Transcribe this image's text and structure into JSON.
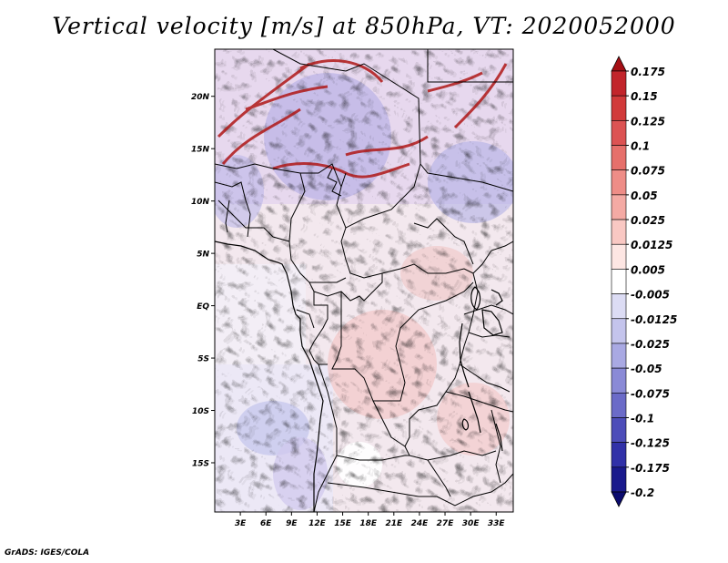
{
  "title": "Vertical velocity [m/s] at 850hPa, VT: 2020052000",
  "footer": "GrADS: IGES/COLA",
  "map": {
    "lat_labels": [
      "20N",
      "15N",
      "10N",
      "5N",
      "EQ",
      "5S",
      "10S",
      "15S"
    ],
    "lat_values": [
      20,
      15,
      10,
      5,
      0,
      -5,
      -10,
      -15
    ],
    "lon_labels": [
      "3E",
      "6E",
      "9E",
      "12E",
      "15E",
      "18E",
      "21E",
      "24E",
      "27E",
      "30E",
      "33E"
    ],
    "lon_values": [
      3,
      6,
      9,
      12,
      15,
      18,
      21,
      24,
      27,
      30,
      33
    ],
    "lat_range": [
      -19.7,
      24.5
    ],
    "lon_range": [
      0,
      35
    ]
  },
  "colorbar": {
    "labels": [
      "0.175",
      "0.15",
      "0.125",
      "0.1",
      "0.075",
      "0.05",
      "0.025",
      "0.0125",
      "0.005",
      "-0.005",
      "-0.0125",
      "-0.025",
      "-0.05",
      "-0.075",
      "-0.1",
      "-0.125",
      "-0.175",
      "-0.2"
    ],
    "colors": [
      "#a50f15",
      "#c2252b",
      "#d13a3a",
      "#dc5353",
      "#e6706b",
      "#ee8d87",
      "#f4aaa4",
      "#f9c8c3",
      "#fde6e3",
      "#ffffff",
      "#dcdcf4",
      "#c4c4ec",
      "#a9a9e3",
      "#8a8ad6",
      "#6b6bc8",
      "#4d4db9",
      "#3131a8",
      "#1a1a8c",
      "#0b0b6e"
    ]
  }
}
